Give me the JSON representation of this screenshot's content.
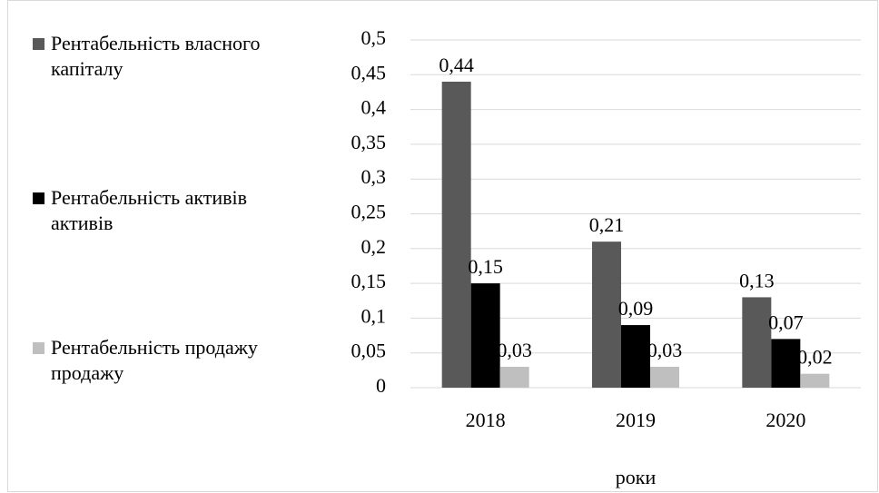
{
  "chart_data": {
    "type": "bar",
    "x_label": "роки",
    "categories": [
      "2018",
      "2019",
      "2020"
    ],
    "series": [
      {
        "name": "Рентабельність власного капіталу",
        "color": "#595959",
        "values": [
          0.44,
          0.21,
          0.13
        ],
        "value_labels": [
          "0,44",
          "0,21",
          "0,13"
        ]
      },
      {
        "name": "Рентабельність активів активів",
        "color": "#000000",
        "values": [
          0.15,
          0.09,
          0.07
        ],
        "value_labels": [
          "0,15",
          "0,09",
          "0,07"
        ]
      },
      {
        "name": "Рентабельність продажу продажу",
        "color": "#bfbfbf",
        "values": [
          0.03,
          0.03,
          0.02
        ],
        "value_labels": [
          "0,03",
          "0,03",
          "0,02"
        ]
      }
    ],
    "ylim": [
      0,
      0.5
    ],
    "yticks": [
      0,
      {
        "value": 0.05,
        "label": "0,05"
      },
      {
        "value": 0.1,
        "label": "0,1"
      },
      {
        "value": 0.15,
        "label": "0,15"
      },
      {
        "value": 0.2,
        "label": "0,2"
      },
      {
        "value": 0.25,
        "label": "0,25"
      },
      {
        "value": 0.3,
        "label": "0,3"
      },
      {
        "value": 0.35,
        "label": "0,35"
      },
      {
        "value": 0.4,
        "label": "0,4"
      },
      {
        "value": 0.45,
        "label": "0,45"
      },
      {
        "value": 0.5,
        "label": "0,5"
      }
    ],
    "grid": true,
    "legend": "left"
  }
}
